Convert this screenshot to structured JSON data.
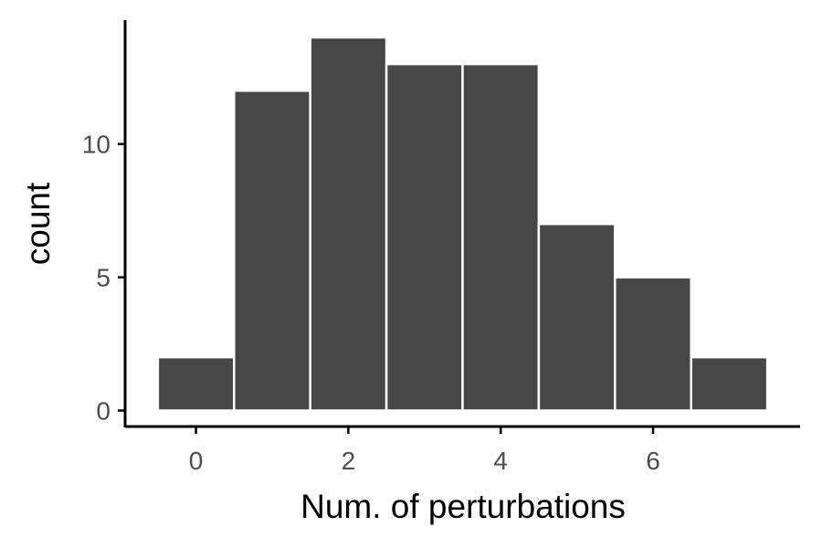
{
  "chart_data": {
    "type": "bar",
    "title": "",
    "xlabel": "Num. of perturbations",
    "ylabel": "count",
    "categories": [
      0,
      1,
      2,
      3,
      4,
      5,
      6,
      7
    ],
    "values": [
      2,
      12,
      14,
      13,
      13,
      7,
      5,
      2
    ],
    "xlim": [
      -0.93,
      7.93
    ],
    "ylim": [
      -0.6,
      14.65
    ],
    "xticks": [
      0,
      2,
      4,
      6
    ],
    "yticks": [
      0,
      5,
      10
    ],
    "grid": false,
    "bar_color": "#474747",
    "bar_outline_color": "#ffffff"
  }
}
